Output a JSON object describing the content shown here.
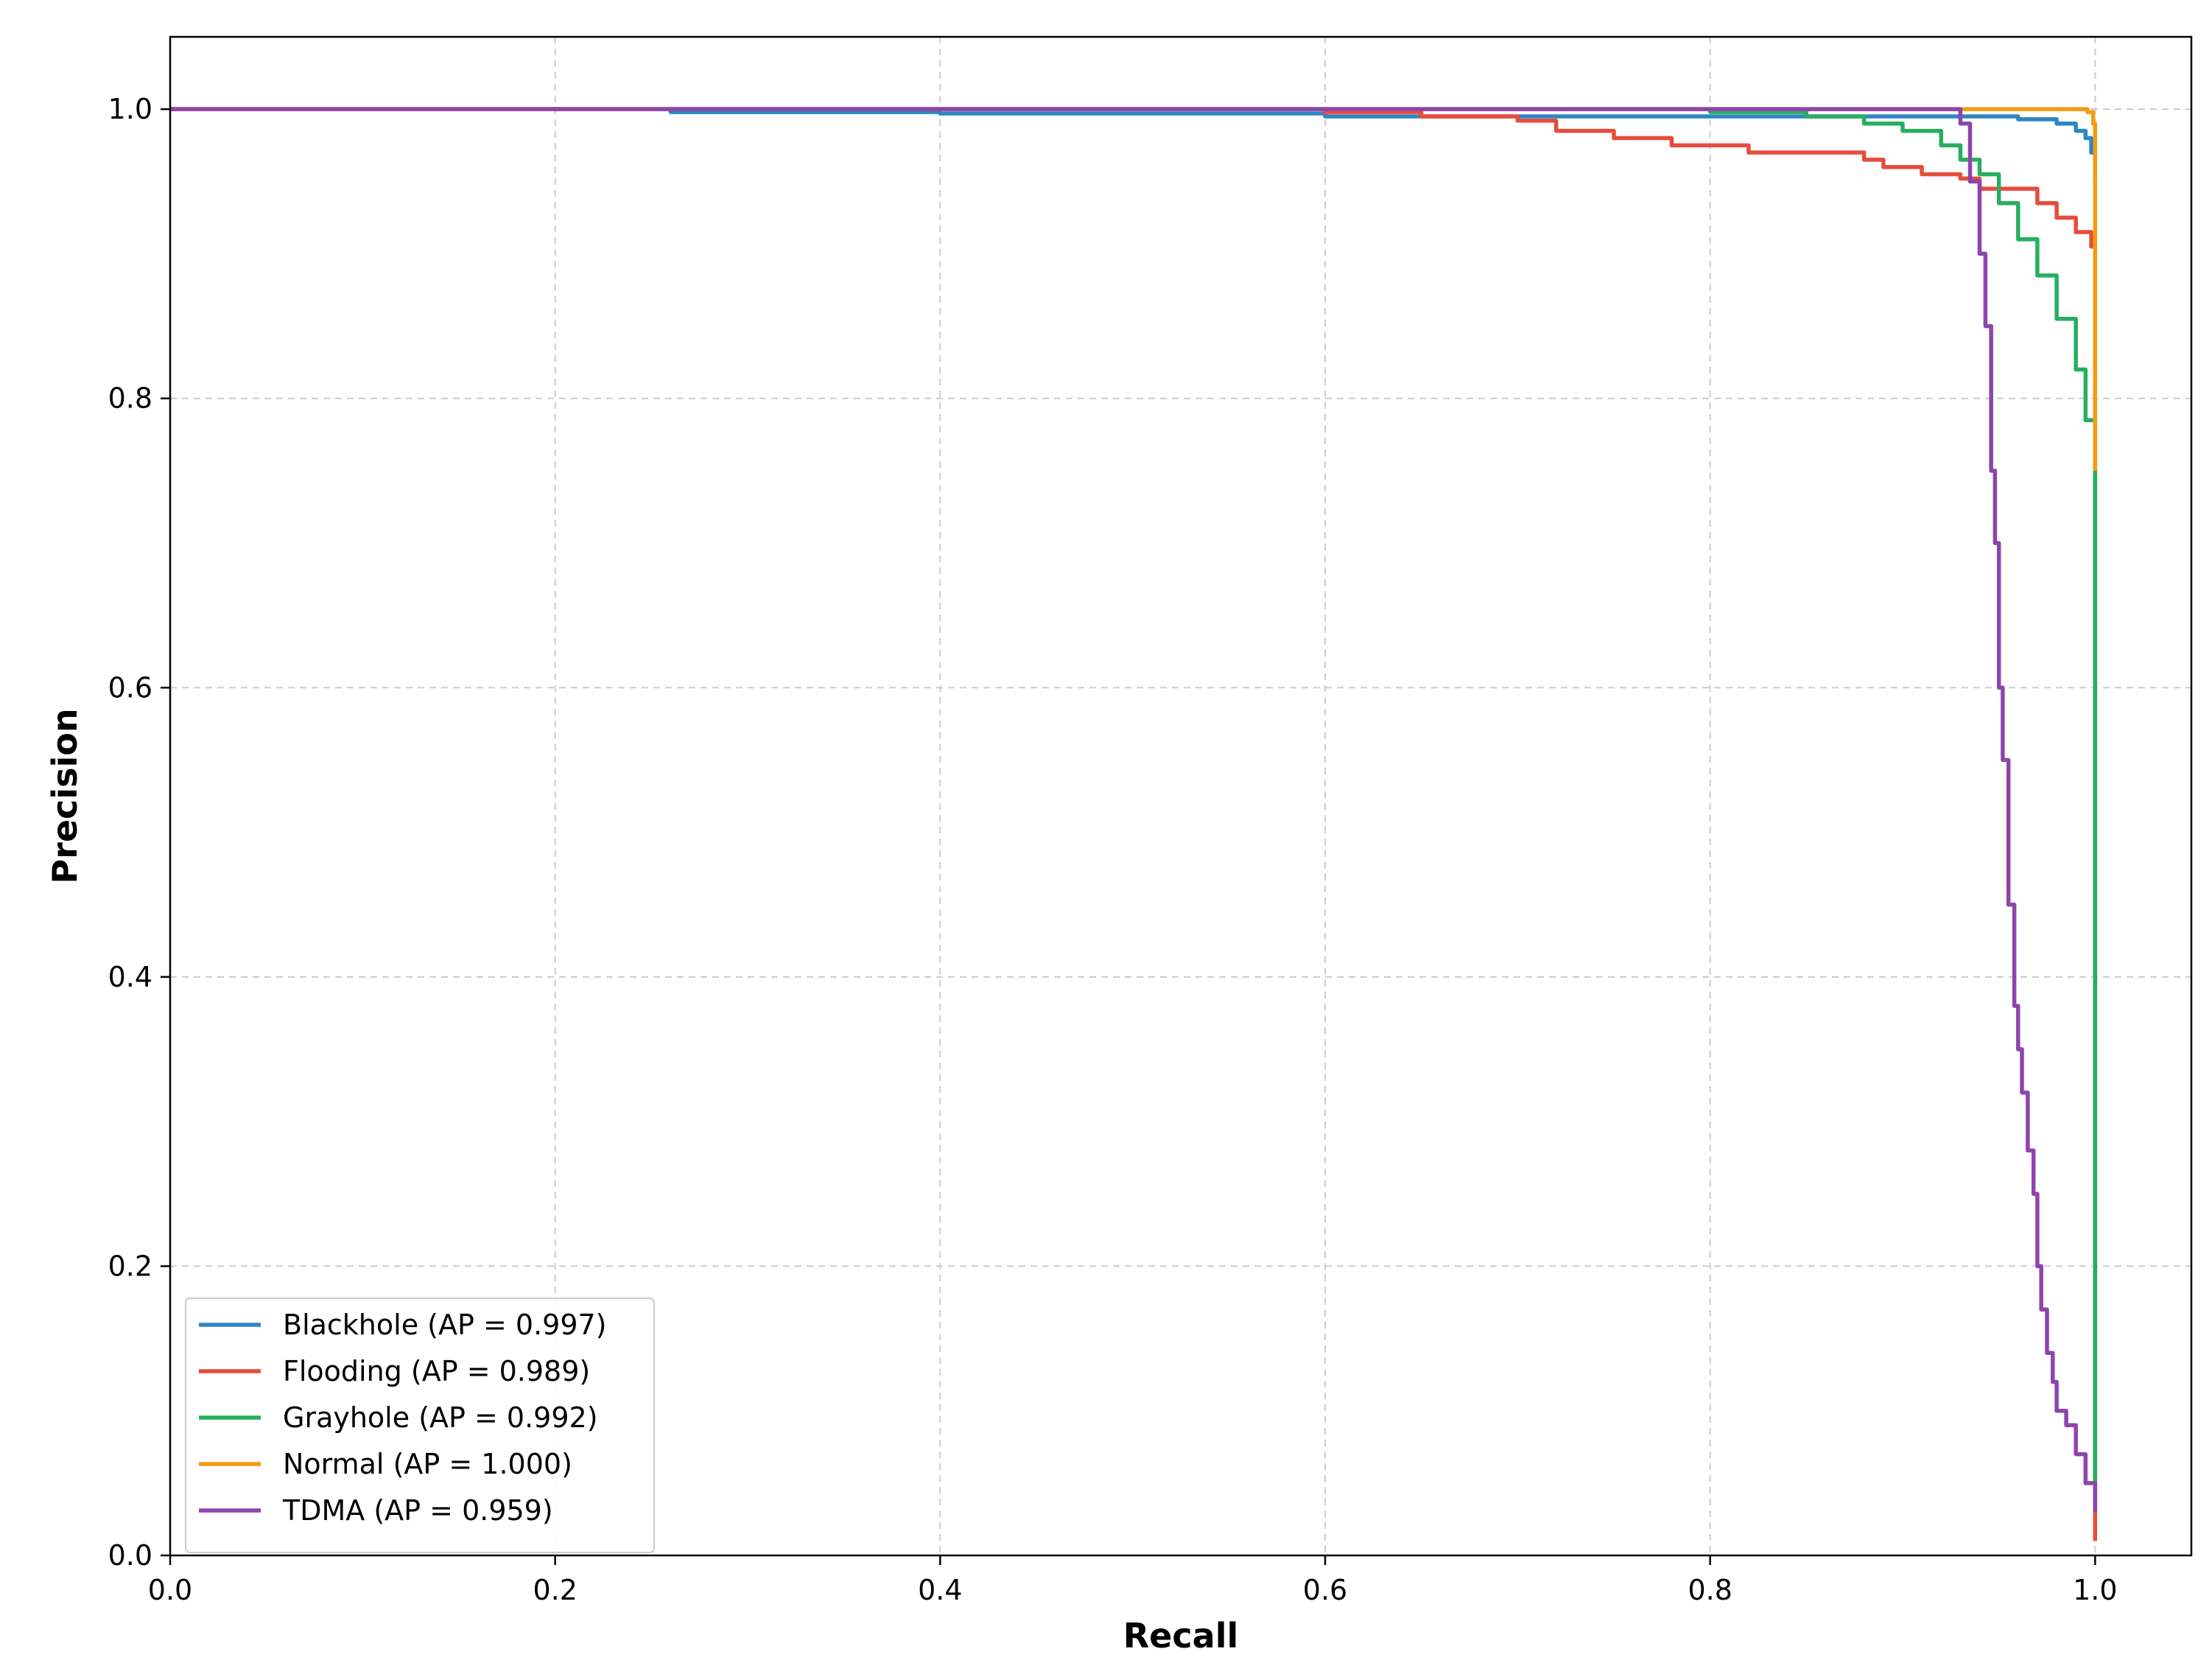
{
  "chart_data": {
    "type": "line",
    "title": "",
    "xlabel": "Recall",
    "ylabel": "Precision",
    "xlim": [
      0.0,
      1.05
    ],
    "ylim": [
      0.0,
      1.05
    ],
    "xticks": [
      "0.0",
      "0.2",
      "0.4",
      "0.6",
      "0.8",
      "1.0"
    ],
    "yticks": [
      "0.0",
      "0.2",
      "0.4",
      "0.6",
      "0.8",
      "1.0"
    ],
    "grid": true,
    "grid_style": "dashed",
    "legend_position": "lower-left",
    "series": [
      {
        "name": "Blackhole (AP = 0.997)",
        "color": "#2e86c1",
        "x": [
          0.0,
          0.26,
          0.26,
          0.4,
          0.6,
          0.8,
          0.9,
          0.94,
          0.96,
          0.98,
          0.99,
          0.995,
          0.998,
          1.0
        ],
        "y": [
          1.0,
          1.0,
          0.998,
          0.997,
          0.995,
          0.995,
          0.995,
          0.995,
          0.993,
          0.99,
          0.985,
          0.98,
          0.97,
          0.95
        ]
      },
      {
        "name": "Flooding (AP = 0.989)",
        "color": "#e74c3c",
        "x": [
          0.0,
          0.58,
          0.6,
          0.65,
          0.7,
          0.72,
          0.75,
          0.78,
          0.82,
          0.86,
          0.88,
          0.89,
          0.91,
          0.93,
          0.94,
          0.96,
          0.97,
          0.98,
          0.99,
          0.998,
          1.0,
          1.0
        ],
        "y": [
          1.0,
          1.0,
          0.998,
          0.995,
          0.992,
          0.985,
          0.98,
          0.975,
          0.97,
          0.97,
          0.965,
          0.96,
          0.955,
          0.952,
          0.945,
          0.945,
          0.935,
          0.925,
          0.915,
          0.905,
          0.905,
          0.01
        ]
      },
      {
        "name": "Grayhole (AP = 0.992)",
        "color": "#27ae60",
        "x": [
          0.0,
          0.8,
          0.85,
          0.88,
          0.9,
          0.92,
          0.93,
          0.94,
          0.95,
          0.96,
          0.97,
          0.98,
          0.99,
          0.995,
          1.0,
          1.0
        ],
        "y": [
          1.0,
          0.998,
          0.995,
          0.99,
          0.985,
          0.975,
          0.965,
          0.955,
          0.935,
          0.91,
          0.885,
          0.855,
          0.82,
          0.785,
          0.73,
          0.03
        ]
      },
      {
        "name": "Normal (AP = 1.000)",
        "color": "#f39c12",
        "x": [
          0.0,
          0.9,
          0.99,
          0.996,
          0.999,
          1.0,
          1.0
        ],
        "y": [
          1.0,
          1.0,
          1.0,
          0.998,
          0.99,
          0.95,
          0.75
        ]
      },
      {
        "name": "TDMA (AP = 0.959)",
        "color": "#8e44ad",
        "x": [
          0.0,
          0.5,
          0.9,
          0.925,
          0.93,
          0.935,
          0.94,
          0.943,
          0.946,
          0.948,
          0.95,
          0.952,
          0.955,
          0.958,
          0.96,
          0.962,
          0.965,
          0.968,
          0.97,
          0.972,
          0.975,
          0.978,
          0.98,
          0.985,
          0.99,
          0.995,
          1.0
        ],
        "y": [
          1.0,
          1.0,
          1.0,
          1.0,
          0.99,
          0.95,
          0.9,
          0.85,
          0.75,
          0.7,
          0.6,
          0.55,
          0.45,
          0.38,
          0.35,
          0.32,
          0.28,
          0.25,
          0.2,
          0.17,
          0.14,
          0.12,
          0.1,
          0.09,
          0.07,
          0.05,
          0.03
        ]
      }
    ]
  }
}
